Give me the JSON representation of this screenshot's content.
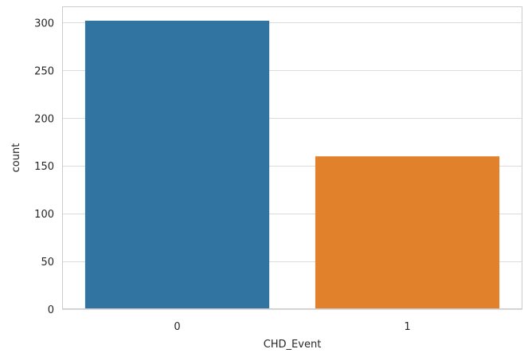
{
  "chart_data": {
    "type": "bar",
    "categories": [
      "0",
      "1"
    ],
    "values": [
      302,
      160
    ],
    "xlabel": "CHD_Event",
    "ylabel": "count",
    "ylim": [
      0,
      317
    ],
    "yticks": [
      0,
      50,
      100,
      150,
      200,
      250,
      300
    ],
    "grid": "horizontal",
    "legend": "none",
    "colors": [
      "#3274a1",
      "#e1812c"
    ],
    "grid_color": "#dcdcdc",
    "background": "#ffffff"
  }
}
